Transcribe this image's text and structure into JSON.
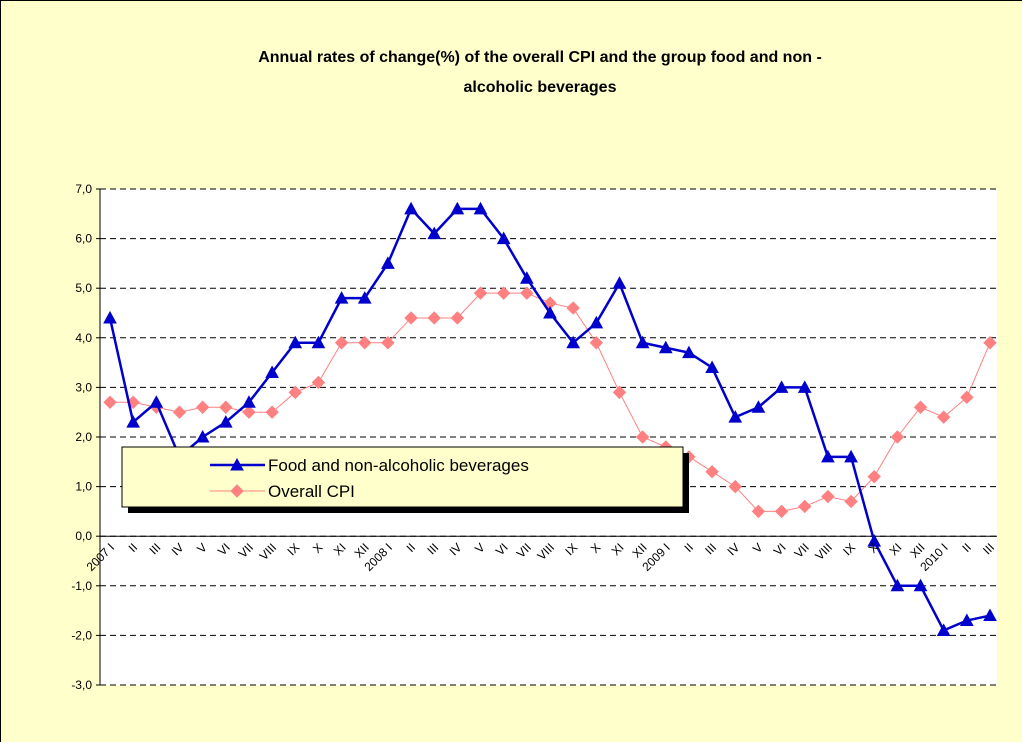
{
  "chart_data": {
    "type": "line",
    "title": [
      "Annual rates of change(%) of the overall CPI and  the group food and non -",
      "alcoholic beverages"
    ],
    "categories": [
      "2007 I",
      "II",
      "III",
      "IV",
      "V",
      "VI",
      "VII",
      "VIII",
      "IX",
      "X",
      "XI",
      "XII",
      "2008 I",
      "II",
      "III",
      "IV",
      "V",
      "VI",
      "VII",
      "VIII",
      "IX",
      "X",
      "XI",
      "XII",
      "2009 I",
      "II",
      "III",
      "IV",
      "V",
      "VI",
      "VII",
      "VIII",
      "IX",
      "X",
      "XI",
      "XII",
      "2010 I",
      "II",
      "III"
    ],
    "series": [
      {
        "name": "Food and non-alcoholic beverages",
        "color": "#0000CC",
        "marker": "triangle",
        "values": [
          4.4,
          2.3,
          2.7,
          1.6,
          2.0,
          2.3,
          2.7,
          3.3,
          3.9,
          3.9,
          4.8,
          4.8,
          5.5,
          6.6,
          6.1,
          6.6,
          6.6,
          6.0,
          5.2,
          4.5,
          3.9,
          4.3,
          5.1,
          3.9,
          3.8,
          3.7,
          3.4,
          2.4,
          2.6,
          3.0,
          3.0,
          1.6,
          1.6,
          -0.1,
          -1.0,
          -1.0,
          -1.9,
          -1.7,
          -1.6
        ]
      },
      {
        "name": "Overall CPI",
        "color": "#FF8080",
        "marker": "diamond",
        "values": [
          2.7,
          2.7,
          2.6,
          2.5,
          2.6,
          2.6,
          2.5,
          2.5,
          2.9,
          3.1,
          3.9,
          3.9,
          3.9,
          4.4,
          4.4,
          4.4,
          4.9,
          4.9,
          4.9,
          4.7,
          4.6,
          3.9,
          2.9,
          2.0,
          1.8,
          1.6,
          1.3,
          1.0,
          0.5,
          0.5,
          0.6,
          0.8,
          0.7,
          1.2,
          2.0,
          2.6,
          2.4,
          2.8,
          3.9
        ]
      }
    ],
    "ylim": [
      -3,
      7
    ],
    "yticks": [
      {
        "value": -3,
        "label": "-3,0"
      },
      {
        "value": -2,
        "label": "-2,0"
      },
      {
        "value": -1,
        "label": "-1,0"
      },
      {
        "value": 0,
        "label": "0,0"
      },
      {
        "value": 1,
        "label": "1,0"
      },
      {
        "value": 2,
        "label": "2,0"
      },
      {
        "value": 3,
        "label": "3,0"
      },
      {
        "value": 4,
        "label": "4,0"
      },
      {
        "value": 5,
        "label": "5,0"
      },
      {
        "value": 6,
        "label": "6,0"
      },
      {
        "value": 7,
        "label": "7,0"
      }
    ],
    "grid": true
  }
}
